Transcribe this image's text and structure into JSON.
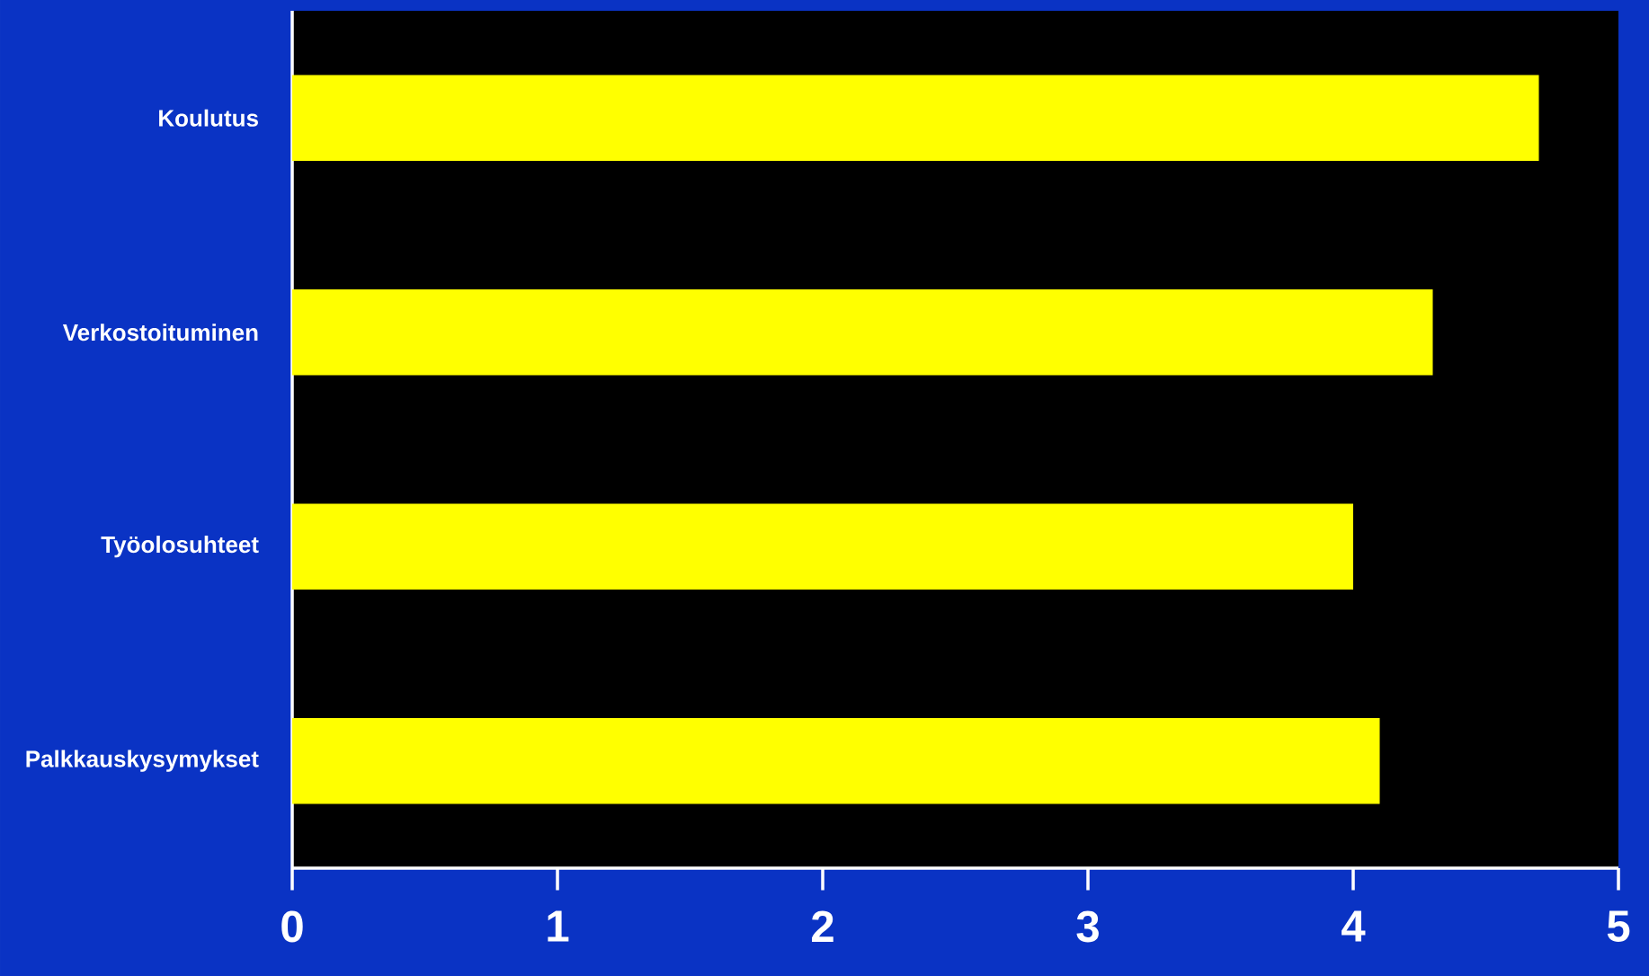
{
  "chart_data": {
    "type": "bar",
    "orientation": "horizontal",
    "categories": [
      "Koulutus",
      "Verkostoituminen",
      "Työolosuhteet",
      "Palkkauskysymykset"
    ],
    "values": [
      4.7,
      4.3,
      4.0,
      4.1
    ],
    "color": "#ffff00",
    "xlim": [
      0,
      5
    ],
    "xticks": [
      0,
      1,
      2,
      3,
      4,
      5
    ]
  }
}
